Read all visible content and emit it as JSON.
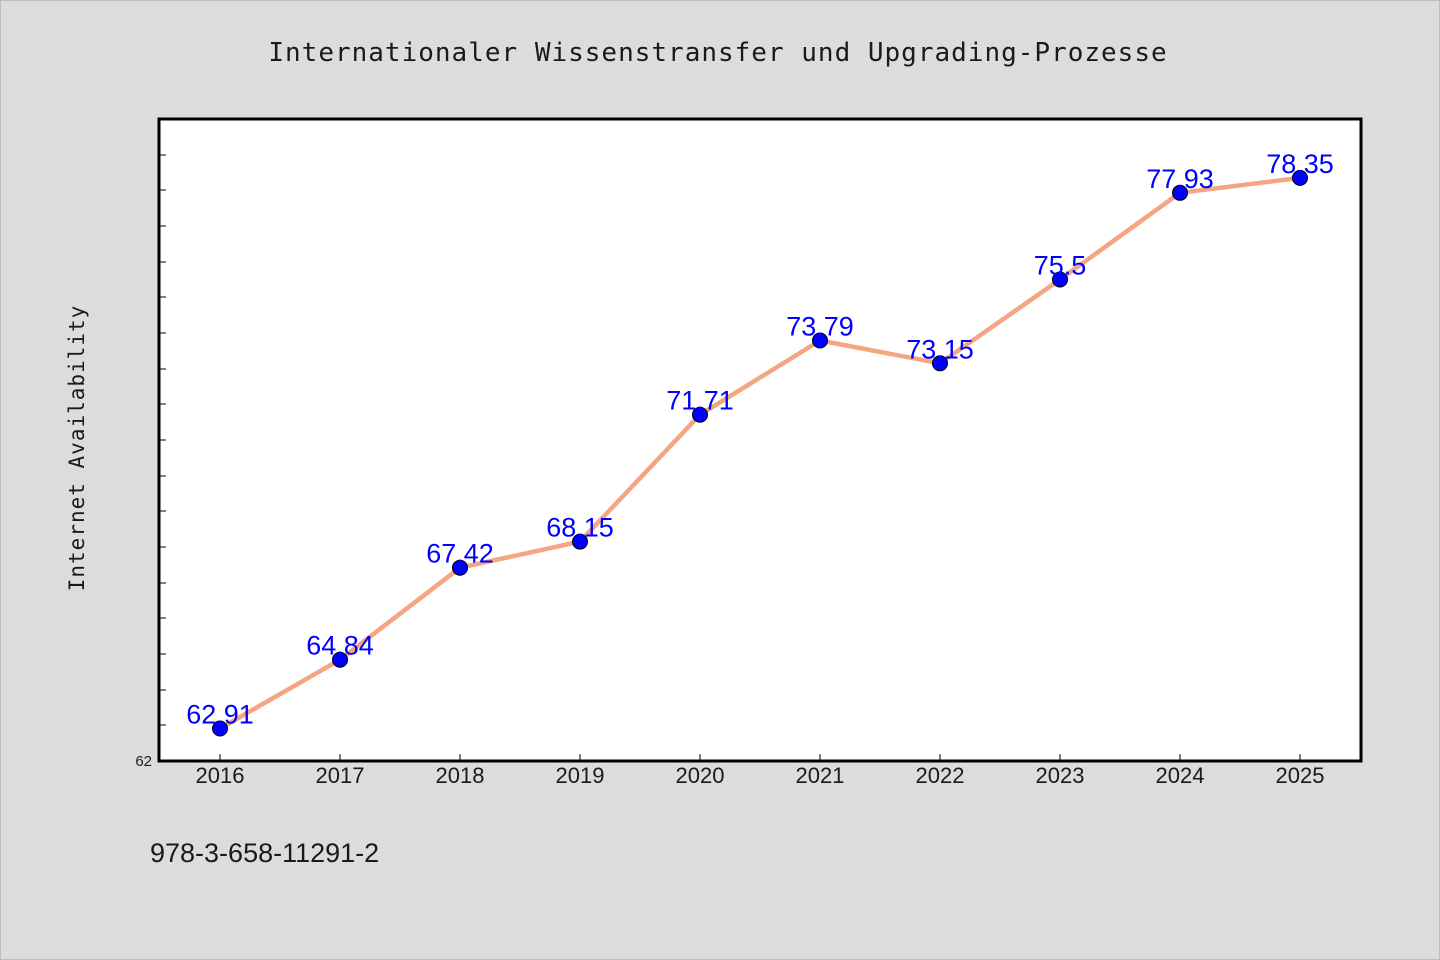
{
  "chart_data": {
    "type": "line",
    "title": "Internationaler Wissenstransfer und Upgrading-Prozesse",
    "xlabel": "",
    "ylabel": "Internet Availability",
    "x": [
      "2016",
      "2017",
      "2018",
      "2019",
      "2020",
      "2021",
      "2022",
      "2023",
      "2024",
      "2025"
    ],
    "series": [
      {
        "values": [
          62.91,
          64.84,
          67.42,
          68.15,
          71.71,
          73.79,
          73.15,
          75.5,
          77.93,
          78.35
        ],
        "data_labels": [
          "62.91",
          "64.84",
          "67.42",
          "68.15",
          "71.71",
          "73.79",
          "73.15",
          "75.5",
          "77.93",
          "78.35"
        ],
        "line_color": "#f4a582",
        "marker_color": "#0000ff"
      }
    ],
    "ylim": [
      62,
      80
    ],
    "y_tick_labels": [
      "62"
    ],
    "y_minor_tick_step": 1,
    "grid": false,
    "legend": "none",
    "footer_text": "978-3-658-11291-2",
    "colors": {
      "figure_background": "#dcdcdc",
      "plot_background": "#ffffff",
      "axes_frame": "#000000",
      "line": "#f4a582",
      "marker": "#0000ff",
      "data_label": "#0000ff"
    }
  }
}
